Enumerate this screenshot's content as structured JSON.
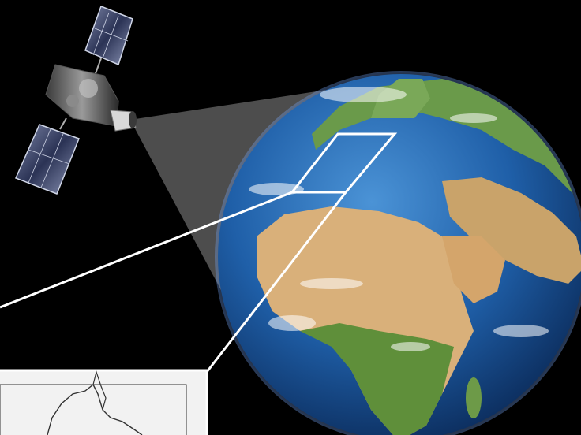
{
  "scene": {
    "background_color": "#000000",
    "elements": {
      "satellite": "satellite-icon",
      "earth": "earth-globe",
      "sensor_beam": "observation-beam",
      "region_box": "study-region-rectangle",
      "inset": "zoomed-map-inset"
    },
    "colors": {
      "ocean": "#1f5fa8",
      "land_desert": "#d9b07a",
      "land_green": "#5f8f3a",
      "beam": "#5a5a5a",
      "box_outline": "#ffffff",
      "inset_background": "#f2f2f2",
      "inset_line": "#333333"
    }
  }
}
